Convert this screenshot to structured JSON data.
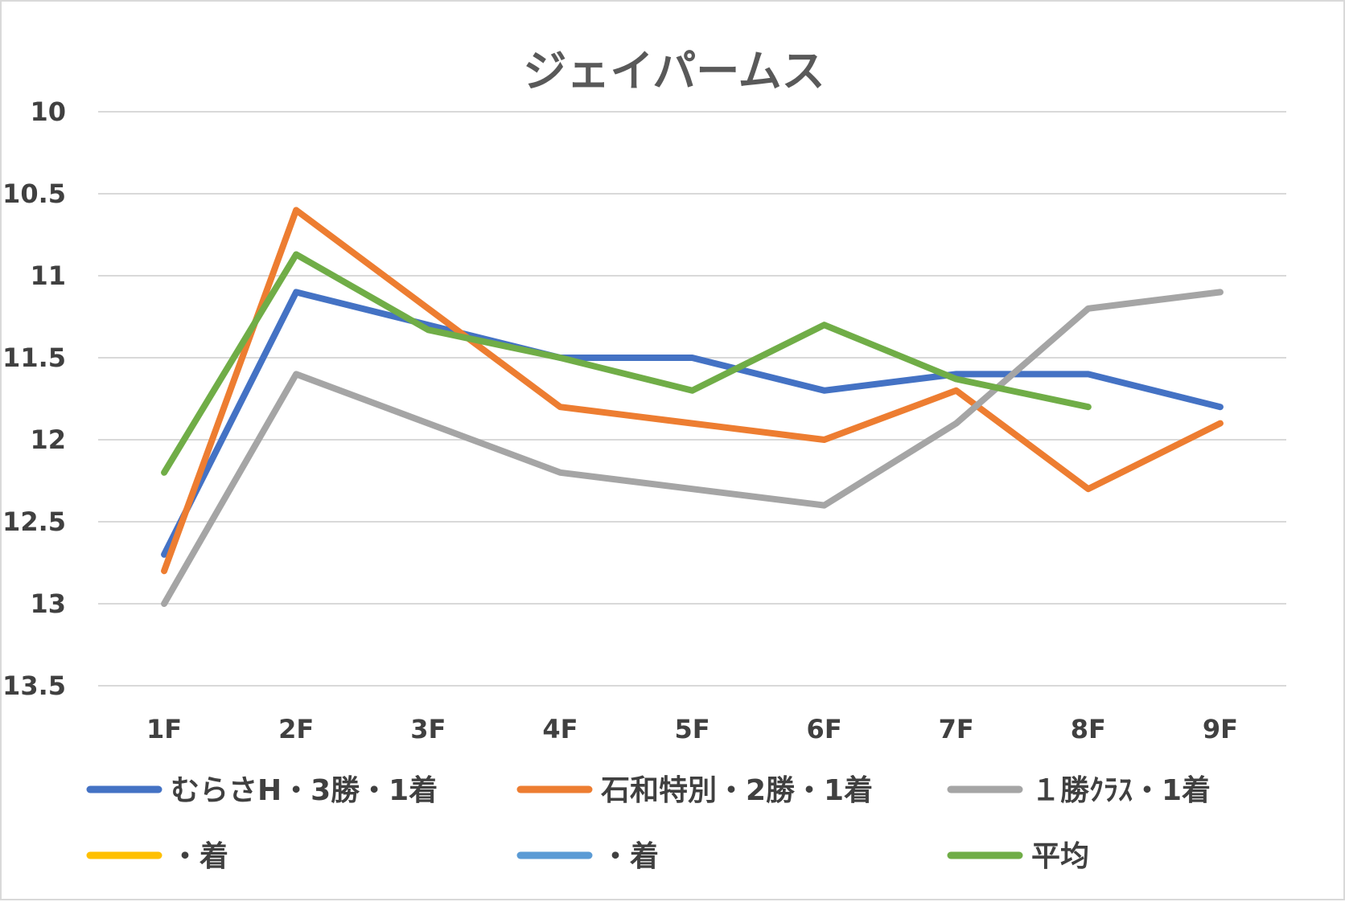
{
  "chart_data": {
    "type": "line",
    "title": "ジェイパームス",
    "categories": [
      "1F",
      "2F",
      "3F",
      "4F",
      "5F",
      "6F",
      "7F",
      "8F",
      "9F"
    ],
    "y_ticks": [
      "10",
      "10.5",
      "11",
      "11.5",
      "12",
      "12.5",
      "13",
      "13.5"
    ],
    "ylim": [
      10,
      13.5
    ],
    "y_reversed": true,
    "grid": true,
    "legend_position": "bottom",
    "series": [
      {
        "name": "むらさH・3勝・1着",
        "color": "#4472C4",
        "values": [
          12.7,
          11.1,
          11.3,
          11.5,
          11.5,
          11.7,
          11.6,
          11.6,
          11.8
        ]
      },
      {
        "name": "石和特別・2勝・1着",
        "color": "#ED7D31",
        "values": [
          12.8,
          10.6,
          11.2,
          11.8,
          11.9,
          12.0,
          11.7,
          12.3,
          11.9
        ]
      },
      {
        "name": "１勝ｸﾗｽ・1着",
        "color": "#A5A5A5",
        "values": [
          13.0,
          11.6,
          11.9,
          12.2,
          12.3,
          12.4,
          11.9,
          11.2,
          11.1
        ]
      },
      {
        "name": "・着",
        "color": "#FFC000",
        "values": [
          null,
          null,
          null,
          null,
          null,
          null,
          null,
          null,
          null
        ]
      },
      {
        "name": "・着",
        "color": "#5B9BD5",
        "values": [
          null,
          null,
          null,
          null,
          null,
          null,
          null,
          null,
          null
        ]
      },
      {
        "name": "平均",
        "color": "#70AD47",
        "values": [
          12.2,
          10.87,
          11.33,
          11.5,
          11.7,
          11.3,
          11.63,
          11.8,
          null
        ]
      }
    ]
  }
}
